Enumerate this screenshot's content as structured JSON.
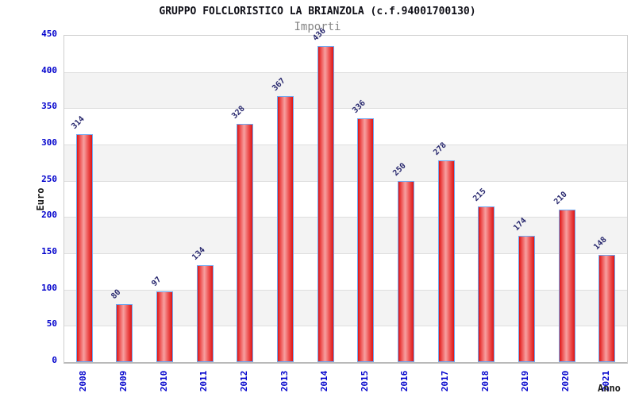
{
  "chart_data": {
    "type": "bar",
    "title": "GRUPPO FOLCLORISTICO LA BRIANZOLA (c.f.94001700130)",
    "subtitle": "Importi",
    "xlabel": "Anno",
    "ylabel": "Euro",
    "categories": [
      "2008",
      "2009",
      "2010",
      "2011",
      "2012",
      "2013",
      "2014",
      "2015",
      "2016",
      "2017",
      "2018",
      "2019",
      "2020",
      "2021"
    ],
    "values": [
      314,
      80,
      97,
      134,
      328,
      367,
      436,
      336,
      250,
      278,
      215,
      174,
      210,
      148
    ],
    "ylim": [
      0,
      450
    ],
    "ytick_step": 50,
    "grid": "horizontal gridlines with alternating gray bands",
    "legend": "none",
    "bar_value_labels": "rotated 45 degrees above each bar",
    "x_tick_labels": "rotated 90 degrees"
  },
  "colors": {
    "background": "#ffffff",
    "title": "#101018",
    "subtitle": "#858585",
    "axis_tick_label": "#0000cc",
    "value_label": "#28286e",
    "axis_title": "#1a1a1a",
    "band": "#f3f3f3",
    "gridline": "#dedede",
    "plot_border": "#cfcfcf",
    "axis_line": "#b9b9b9",
    "bar_fill_dark": "#dd1515",
    "bar_fill_mid": "#ee5555",
    "bar_fill_light": "#f7a0a0",
    "bar_border": "#70a8f0"
  }
}
